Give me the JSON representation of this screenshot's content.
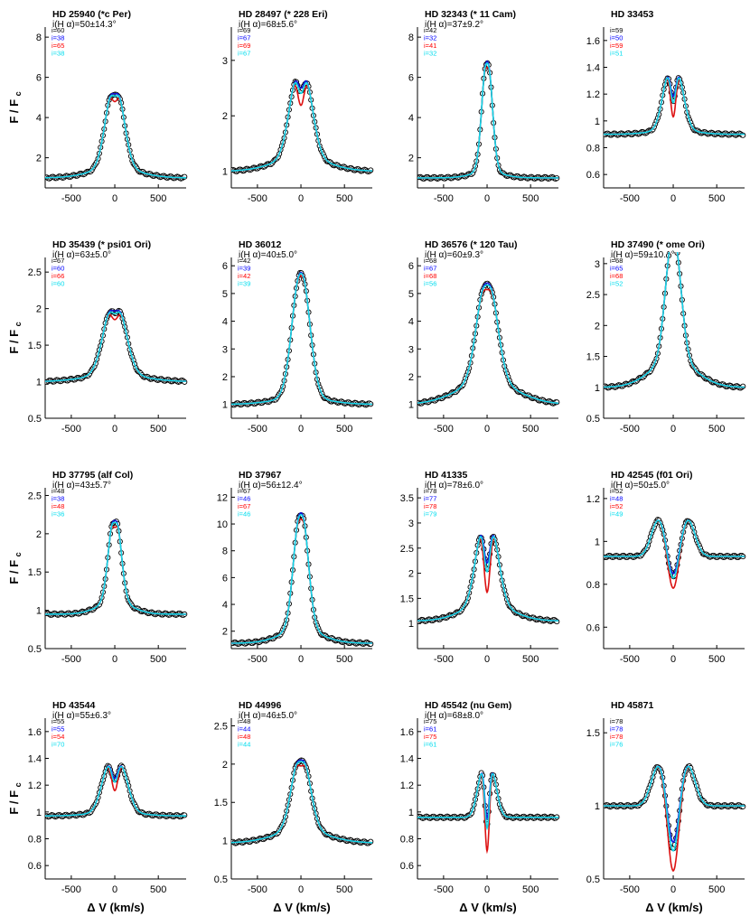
{
  "figure": {
    "y_axis_label": "F / F",
    "y_axis_sub": "c",
    "x_axis_label": "Δ V (km/s)",
    "x_ticks": [
      "-500",
      "0",
      "500"
    ],
    "legend_colors": [
      "#000000",
      "#0000ff",
      "#ff0000",
      "#00ddee"
    ],
    "observed_color": "#000000",
    "model_colors": {
      "blue": "#1515d8",
      "red": "#dd1111",
      "cyan": "#11d8e8"
    }
  },
  "chart_data": [
    {
      "type": "line",
      "title": "HD 25940 (*c Per)",
      "subtitle": "i(H α)=50±14.3°",
      "legend": [
        "i=60",
        "i=38",
        "i=65",
        "i=38"
      ],
      "ylim": [
        0.5,
        8.5
      ],
      "yticks": [
        2,
        4,
        6,
        8
      ],
      "profile": {
        "kind": "em",
        "amp": 5.0,
        "sig": 85,
        "sep": 90,
        "dip": 0.18,
        "wing": 0.1,
        "base": 1.0
      }
    },
    {
      "type": "line",
      "title": "HD 28497 (* 228 Eri)",
      "subtitle": "i(H α)=68±5.6°",
      "legend": [
        "i=69",
        "i=67",
        "i=69",
        "i=67"
      ],
      "ylim": [
        0.7,
        3.6
      ],
      "yticks": [
        1,
        2,
        3
      ],
      "profile": {
        "kind": "em",
        "amp": 2.1,
        "sig": 95,
        "sep": 110,
        "dip": 0.35,
        "wing": 0.12,
        "base": 1.0
      }
    },
    {
      "type": "line",
      "title": "HD 32343 (* 11 Cam)",
      "subtitle": "i(H α)=37±9.2°",
      "legend": [
        "i=42",
        "i=32",
        "i=41",
        "i=32"
      ],
      "ylim": [
        0.5,
        8.5
      ],
      "yticks": [
        2,
        4,
        6,
        8
      ],
      "profile": {
        "kind": "em",
        "amp": 6.1,
        "sig": 55,
        "sep": 20,
        "dip": 0.1,
        "wing": 0.05,
        "base": 1.0
      }
    },
    {
      "type": "line",
      "title": "HD 33453",
      "subtitle": "",
      "legend": [
        "i=59",
        "i=50",
        "i=59",
        "i=51"
      ],
      "ylim": [
        0.5,
        1.7
      ],
      "yticks": [
        0.6,
        0.8,
        1,
        1.2,
        1.4,
        1.6
      ],
      "profile": {
        "kind": "em",
        "amp": 0.68,
        "sig": 75,
        "sep": 115,
        "dip": 0.6,
        "wing": 0.05,
        "base": 0.9
      }
    },
    {
      "type": "line",
      "title": "HD 35439 (* psi01 Ori)",
      "subtitle": "i(H α)=63±5.0°",
      "legend": [
        "i=67",
        "i=60",
        "i=66",
        "i=60"
      ],
      "ylim": [
        0.5,
        2.7
      ],
      "yticks": [
        0.5,
        1,
        1.5,
        2,
        2.5
      ],
      "profile": {
        "kind": "em",
        "amp": 1.2,
        "sig": 105,
        "sep": 100,
        "dip": 0.22,
        "wing": 0.08,
        "base": 1.0
      }
    },
    {
      "type": "line",
      "title": "HD 36012",
      "subtitle": "i(H α)=40±5.0°",
      "legend": [
        "i=42",
        "i=39",
        "i=42",
        "i=39"
      ],
      "ylim": [
        0.5,
        6.3
      ],
      "yticks": [
        1,
        2,
        3,
        4,
        5,
        6
      ],
      "profile": {
        "kind": "em",
        "amp": 4.8,
        "sig": 95,
        "sep": 35,
        "dip": 0.05,
        "wing": 0.05,
        "base": 1.0
      }
    },
    {
      "type": "line",
      "title": "HD 36576 (* 120 Tau)",
      "subtitle": "i(H α)=60±9.3°",
      "legend": [
        "i=68",
        "i=67",
        "i=68",
        "i=56"
      ],
      "ylim": [
        0.5,
        6.3
      ],
      "yticks": [
        1,
        2,
        3,
        4,
        5,
        6
      ],
      "profile": {
        "kind": "em",
        "amp": 4.1,
        "sig": 105,
        "sep": 55,
        "dip": 0.12,
        "wing": 0.2,
        "base": 1.0
      }
    },
    {
      "type": "line",
      "title": "HD 37490 (* ome Ori)",
      "subtitle": "i(H α)=59±10.1°",
      "legend": [
        "i=68",
        "i=65",
        "i=68",
        "i=52"
      ],
      "ylim": [
        0.5,
        3.1
      ],
      "yticks": [
        0.5,
        1,
        1.5,
        2,
        2.5,
        3
      ],
      "profile": {
        "kind": "em",
        "amp": 2.2,
        "sig": 80,
        "sep": 45,
        "dip": 0.08,
        "wing": 0.2,
        "base": 1.0
      }
    },
    {
      "type": "line",
      "title": "HD 37795 (alf Col)",
      "subtitle": "i(H α)=43±5.7°",
      "legend": [
        "i=48",
        "i=38",
        "i=48",
        "i=36"
      ],
      "ylim": [
        0.5,
        2.6
      ],
      "yticks": [
        0.5,
        1,
        1.5,
        2,
        2.5
      ],
      "profile": {
        "kind": "em",
        "amp": 1.35,
        "sig": 60,
        "sep": 55,
        "dip": 0.15,
        "wing": 0.12,
        "base": 0.95
      }
    },
    {
      "type": "line",
      "title": "HD 37967",
      "subtitle": "i(H α)=56±12.4°",
      "legend": [
        "i=67",
        "i=46",
        "i=67",
        "i=46"
      ],
      "ylim": [
        0.7,
        12.7
      ],
      "yticks": [
        2,
        4,
        6,
        8,
        10,
        12
      ],
      "profile": {
        "kind": "em",
        "amp": 9.9,
        "sig": 75,
        "sep": 40,
        "dip": 0.1,
        "wing": 0.1,
        "base": 1.1
      }
    },
    {
      "type": "line",
      "title": "HD 41335",
      "subtitle": "i(H α)=78±6.0°",
      "legend": [
        "i=78",
        "i=77",
        "i=78",
        "i=79"
      ],
      "ylim": [
        0.5,
        3.7
      ],
      "yticks": [
        1,
        1.5,
        2,
        2.5,
        3,
        3.5
      ],
      "profile": {
        "kind": "em",
        "amp": 2.35,
        "sig": 85,
        "sep": 125,
        "dip": 0.65,
        "wing": 0.15,
        "base": 1.05
      }
    },
    {
      "type": "line",
      "title": "HD 42545 (f01 Ori)",
      "subtitle": "i(H α)=50±5.0°",
      "legend": [
        "i=52",
        "i=48",
        "i=52",
        "i=49"
      ],
      "ylim": [
        0.5,
        1.25
      ],
      "yticks": [
        0.6,
        0.8,
        1,
        1.2
      ],
      "profile": {
        "kind": "ws",
        "amp": 0.17,
        "sig": 80,
        "sep": 170,
        "dip": 0.8,
        "wing": 0.0,
        "base": 0.93
      }
    },
    {
      "type": "line",
      "title": "HD 43544",
      "subtitle": "i(H α)=55±6.3°",
      "legend": [
        "i=55",
        "i=55",
        "i=54",
        "i=70"
      ],
      "ylim": [
        0.5,
        1.7
      ],
      "yticks": [
        0.6,
        0.8,
        1,
        1.2,
        1.4,
        1.6
      ],
      "profile": {
        "kind": "em",
        "amp": 0.6,
        "sig": 85,
        "sep": 150,
        "dip": 0.45,
        "wing": 0.05,
        "base": 0.97
      }
    },
    {
      "type": "line",
      "title": "HD 44996",
      "subtitle": "i(H α)=46±5.0°",
      "legend": [
        "i=48",
        "i=44",
        "i=48",
        "i=44"
      ],
      "ylim": [
        0.5,
        2.6
      ],
      "yticks": [
        0.5,
        1,
        1.5,
        2,
        2.5
      ],
      "profile": {
        "kind": "em",
        "amp": 1.1,
        "sig": 95,
        "sep": 55,
        "dip": 0.15,
        "wing": 0.15,
        "base": 0.97
      }
    },
    {
      "type": "line",
      "title": "HD 45542 (nu Gem)",
      "subtitle": "i(H α)=68±8.0°",
      "legend": [
        "i=75",
        "i=61",
        "i=75",
        "i=61"
      ],
      "ylim": [
        0.5,
        1.7
      ],
      "yticks": [
        0.6,
        0.8,
        1,
        1.2,
        1.4,
        1.6
      ],
      "profile": {
        "kind": "em",
        "amp": 0.62,
        "sig": 60,
        "sep": 110,
        "dip": 1.2,
        "wing": 0.0,
        "base": 0.96
      }
    },
    {
      "type": "line",
      "title": "HD 45871",
      "subtitle": "",
      "legend": [
        "i=78",
        "i=78",
        "i=78",
        "i=76"
      ],
      "ylim": [
        0.5,
        1.6
      ],
      "yticks": [
        0.5,
        1,
        1.5
      ],
      "profile": {
        "kind": "ws",
        "amp": 0.28,
        "sig": 85,
        "sep": 165,
        "dip": 1.4,
        "wing": 0.0,
        "base": 1.0
      }
    }
  ]
}
